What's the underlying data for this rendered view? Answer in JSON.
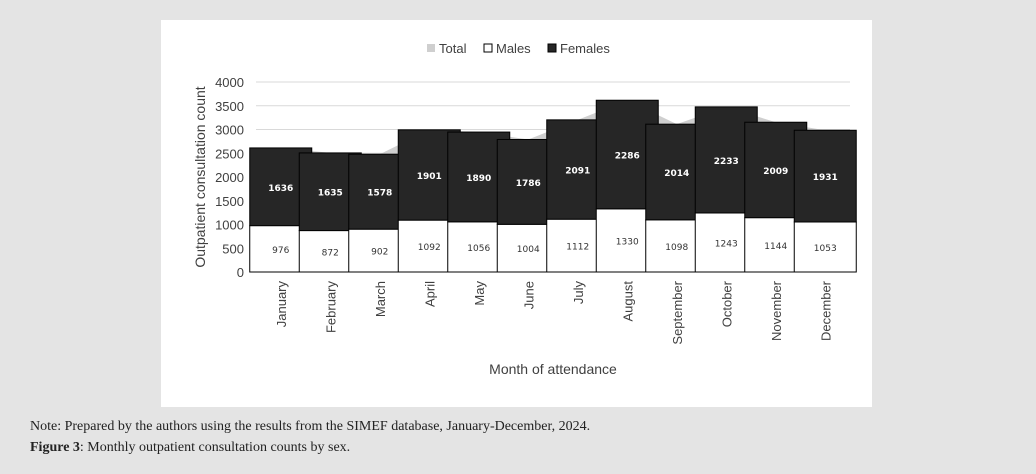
{
  "chart_data": {
    "type": "bar",
    "stacked": true,
    "categories": [
      "January",
      "February",
      "March",
      "April",
      "May",
      "June",
      "July",
      "August",
      "September",
      "October",
      "November",
      "December"
    ],
    "series": [
      {
        "name": "Total",
        "type": "area",
        "values": [
          2612,
          2507,
          2480,
          2993,
          2946,
          2790,
          3203,
          3616,
          3112,
          3476,
          3153,
          2984
        ]
      },
      {
        "name": "Males",
        "values": [
          976,
          872,
          902,
          1092,
          1056,
          1004,
          1112,
          1330,
          1098,
          1243,
          1144,
          1053
        ]
      },
      {
        "name": "Females",
        "values": [
          1636,
          1635,
          1578,
          1901,
          1890,
          1786,
          2091,
          2286,
          2014,
          2233,
          2009,
          1931
        ]
      }
    ],
    "legend": [
      "Total",
      "Males",
      "Females"
    ],
    "legend_position": "top",
    "xlabel": "Month of attendance",
    "ylabel": "Outpatient consultation count",
    "ylim": [
      0,
      4000
    ],
    "yticks": [
      "0",
      "500",
      "1000",
      "1500",
      "2000",
      "2500",
      "3000",
      "3500",
      "4000"
    ],
    "grid": true,
    "colors": {
      "total": "#cfcfcf",
      "males": "#ffffff",
      "females": "#262626"
    }
  },
  "captions": {
    "note": "Note: Prepared by the authors using the results from the SIMEF database, January-December, 2024.",
    "figure_label": "Figure 3",
    "figure_text": ": Monthly outpatient consultation counts by sex."
  }
}
